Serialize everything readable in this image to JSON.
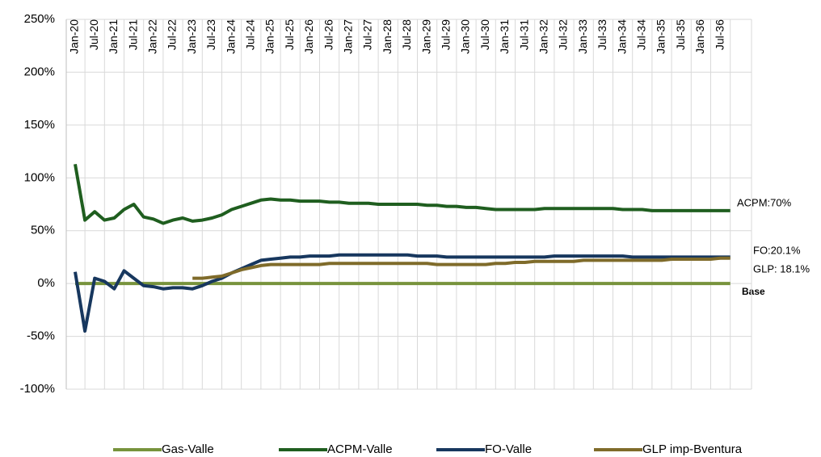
{
  "chart_data": {
    "type": "line",
    "categories": [
      "Jan-20",
      null,
      "Jul-20",
      null,
      "Jan-21",
      null,
      "Jul-21",
      null,
      "Jan-22",
      null,
      "Jul-22",
      null,
      "Jan-23",
      null,
      "Jul-23",
      null,
      "Jan-24",
      null,
      "Jul-24",
      null,
      "Jan-25",
      null,
      "Jul-25",
      null,
      "Jan-26",
      null,
      "Jul-26",
      null,
      "Jan-27",
      null,
      "Jul-27",
      null,
      "Jan-28",
      null,
      "Jul-28",
      null,
      "Jan-29",
      null,
      "Jul-29",
      null,
      "Jan-30",
      null,
      "Jul-30",
      null,
      "Jan-31",
      null,
      "Jul-31",
      null,
      "Jan-32",
      null,
      "Jul-32",
      null,
      "Jan-33",
      null,
      "Jul-33",
      null,
      "Jan-34",
      null,
      "Jul-34",
      null,
      "Jan-35",
      null,
      "Jul-35",
      null,
      "Jan-36",
      null,
      "Jul-36",
      null
    ],
    "series": [
      {
        "name": "Gas-Valle",
        "color": "#77933c",
        "values": [
          0,
          0,
          0,
          0,
          0,
          0,
          0,
          0,
          0,
          0,
          0,
          0,
          0,
          0,
          0,
          0,
          0,
          0,
          0,
          0,
          0,
          0,
          0,
          0,
          0,
          0,
          0,
          0,
          0,
          0,
          0,
          0,
          0,
          0,
          0,
          0,
          0,
          0,
          0,
          0,
          0,
          0,
          0,
          0,
          0,
          0,
          0,
          0,
          0,
          0,
          0,
          0,
          0,
          0,
          0,
          0,
          0,
          0,
          0,
          0,
          0,
          0,
          0,
          0,
          0,
          0,
          0,
          0
        ]
      },
      {
        "name": "ACPM-Valle",
        "color": "#1f5e1f",
        "values": [
          113,
          60,
          68,
          60,
          62,
          70,
          75,
          63,
          61,
          57,
          60,
          62,
          59,
          60,
          62,
          65,
          70,
          73,
          76,
          79,
          80,
          79,
          79,
          78,
          78,
          78,
          77,
          77,
          76,
          76,
          76,
          75,
          75,
          75,
          75,
          75,
          74,
          74,
          73,
          73,
          72,
          72,
          71,
          70,
          70,
          70,
          70,
          70,
          71,
          71,
          71,
          71,
          71,
          71,
          71,
          71,
          70,
          70,
          70,
          69,
          69,
          69,
          69,
          69,
          69,
          69,
          69,
          69
        ]
      },
      {
        "name": "FO-Valle",
        "color": "#17375e",
        "values": [
          11,
          -45,
          5,
          2,
          -5,
          12,
          5,
          -2,
          -3,
          -5,
          -4,
          -4,
          -5,
          -2,
          2,
          5,
          10,
          14,
          18,
          22,
          23,
          24,
          25,
          25,
          26,
          26,
          26,
          27,
          27,
          27,
          27,
          27,
          27,
          27,
          27,
          26,
          26,
          26,
          25,
          25,
          25,
          25,
          25,
          25,
          25,
          25,
          25,
          25,
          25,
          26,
          26,
          26,
          26,
          26,
          26,
          26,
          26,
          25,
          25,
          25,
          25,
          25,
          25,
          25,
          25,
          25,
          25,
          25
        ]
      },
      {
        "name": "GLP imp-Bventura",
        "color": "#7f6b2a",
        "values": [
          null,
          null,
          null,
          null,
          null,
          null,
          null,
          null,
          null,
          null,
          null,
          null,
          5,
          5,
          6,
          7,
          10,
          13,
          15,
          17,
          18,
          18,
          18,
          18,
          18,
          18,
          19,
          19,
          19,
          19,
          19,
          19,
          19,
          19,
          19,
          19,
          19,
          18,
          18,
          18,
          18,
          18,
          18,
          19,
          19,
          20,
          20,
          21,
          21,
          21,
          21,
          21,
          22,
          22,
          22,
          22,
          22,
          22,
          22,
          22,
          22,
          23,
          23,
          23,
          23,
          23,
          24,
          24
        ]
      }
    ],
    "ylim": [
      -100,
      250
    ],
    "yticks": [
      {
        "value": -100,
        "label": "-100%"
      },
      {
        "value": -50,
        "label": "-50%"
      },
      {
        "value": 0,
        "label": "0%"
      },
      {
        "value": 50,
        "label": "50%"
      },
      {
        "value": 100,
        "label": "100%"
      },
      {
        "value": 150,
        "label": "150%"
      },
      {
        "value": 200,
        "label": "200%"
      },
      {
        "value": 250,
        "label": "250%"
      }
    ],
    "grid": true,
    "legend": "bottom",
    "annotations": [
      "ACPM:70%",
      "FO:20.1%",
      "GLP: 18.1%",
      "Base"
    ]
  }
}
